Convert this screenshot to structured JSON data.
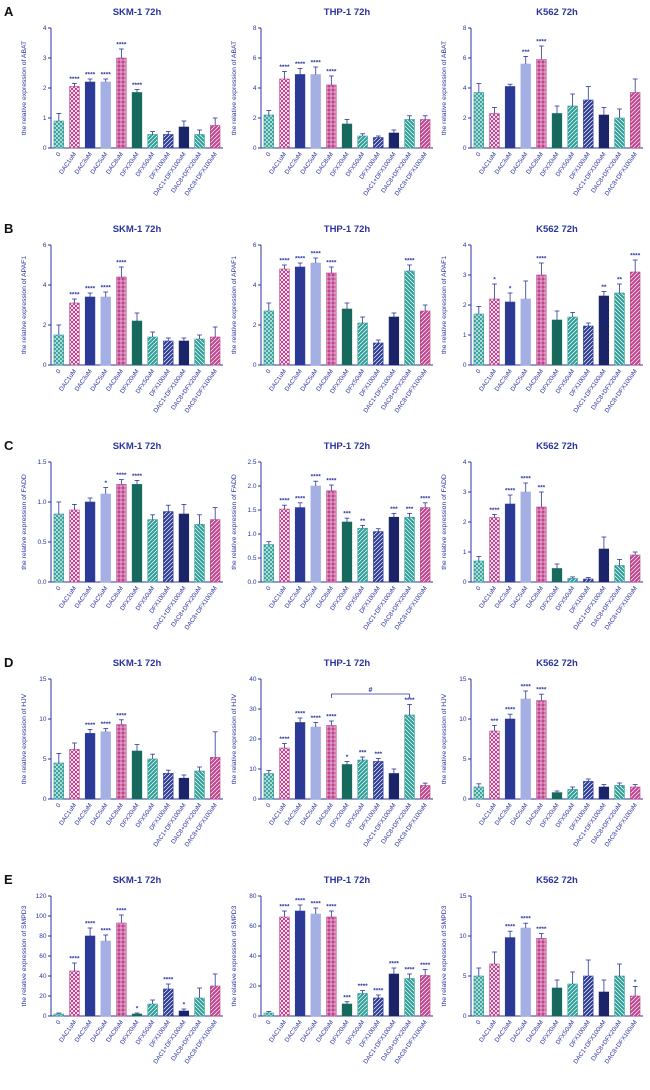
{
  "figure": {
    "text_color": "#2a34a0",
    "rows": [
      {
        "letter": "A",
        "gene": "ABAT"
      },
      {
        "letter": "B",
        "gene": "APAF1"
      },
      {
        "letter": "C",
        "gene": "FADD"
      },
      {
        "letter": "D",
        "gene": "HJV"
      },
      {
        "letter": "E",
        "gene": "SMPD3"
      }
    ],
    "categories": [
      "0",
      "DAC1uM",
      "DAC3uM",
      "DAC5uM",
      "DAC8uM",
      "DFX20uM",
      "DFX50uM",
      "DFX100uM",
      "DAC1+DFX100uM",
      "DAC8+DFX20uM",
      "DAC8+DFX100uM"
    ],
    "bar_styles": [
      {
        "label": "0",
        "color": "#2f9e98",
        "pattern": "cross-diag"
      },
      {
        "label": "DAC1uM",
        "color": "#c0448e",
        "pattern": "checker"
      },
      {
        "label": "DAC3uM",
        "color": "#2b3a96",
        "pattern": "solid"
      },
      {
        "label": "DAC5uM",
        "color": "#a4b0e4",
        "pattern": "solid"
      },
      {
        "label": "DAC8uM",
        "color": "#c0448e",
        "pattern": "crosshatch"
      },
      {
        "label": "DFX20uM",
        "color": "#16695c",
        "pattern": "solid"
      },
      {
        "label": "DFX50uM",
        "color": "#2f9e98",
        "pattern": "diag"
      },
      {
        "label": "DFX100uM",
        "color": "#2b3a96",
        "pattern": "diag"
      },
      {
        "label": "DAC1+DFX100uM",
        "color": "#1b2468",
        "pattern": "solid"
      },
      {
        "label": "DAC8+DFX20uM",
        "color": "#2f9e98",
        "pattern": "diag2"
      },
      {
        "label": "DAC8+DFX100uM",
        "color": "#c0448e",
        "pattern": "diag"
      }
    ]
  },
  "chart_data": [
    {
      "type": "bar",
      "row": "A",
      "title": "SKM-1 72h",
      "ylabel": "the relative expression of ABAT",
      "ylim": [
        0,
        4
      ],
      "yticks": [
        "0",
        "1",
        "2",
        "3",
        "4"
      ],
      "values": [
        0.9,
        2.05,
        2.2,
        2.2,
        3.0,
        1.85,
        0.45,
        0.45,
        0.7,
        0.45,
        0.75
      ],
      "errors": [
        0.25,
        0.1,
        0.1,
        0.1,
        0.3,
        0.1,
        0.1,
        0.1,
        0.2,
        0.15,
        0.25
      ],
      "sig": [
        "",
        "****",
        "****",
        "****",
        "****",
        "****",
        "",
        "",
        "",
        "",
        ""
      ]
    },
    {
      "type": "bar",
      "row": "A",
      "title": "THP-1 72h",
      "ylabel": "the relative expression of ABAT",
      "ylim": [
        0,
        8
      ],
      "yticks": [
        "0",
        "2",
        "4",
        "6",
        "8"
      ],
      "values": [
        2.2,
        4.6,
        4.9,
        4.9,
        4.2,
        1.6,
        0.8,
        0.7,
        1.0,
        1.9,
        1.9
      ],
      "errors": [
        0.3,
        0.5,
        0.4,
        0.5,
        0.6,
        0.3,
        0.15,
        0.1,
        0.2,
        0.25,
        0.25
      ],
      "sig": [
        "",
        "****",
        "****",
        "****",
        "****",
        "",
        "",
        "",
        "",
        "",
        ""
      ]
    },
    {
      "type": "bar",
      "row": "A",
      "title": "K562 72h",
      "ylabel": "the relative expression of ABAT",
      "ylim": [
        0,
        8
      ],
      "yticks": [
        "0",
        "2",
        "4",
        "6",
        "8"
      ],
      "values": [
        3.7,
        2.3,
        4.1,
        5.6,
        5.9,
        2.3,
        2.8,
        3.2,
        2.2,
        2.0,
        3.7
      ],
      "errors": [
        0.6,
        0.4,
        0.15,
        0.5,
        0.9,
        0.5,
        0.8,
        0.9,
        0.5,
        0.6,
        0.9
      ],
      "sig": [
        "",
        "",
        "",
        "***",
        "****",
        "",
        "",
        "",
        "",
        "",
        ""
      ]
    },
    {
      "type": "bar",
      "row": "B",
      "title": "SKM-1 72h",
      "ylabel": "the relative expression of APAF1",
      "ylim": [
        0,
        6
      ],
      "yticks": [
        "0",
        "2",
        "4",
        "6"
      ],
      "values": [
        1.5,
        3.1,
        3.4,
        3.4,
        4.4,
        2.2,
        1.4,
        1.2,
        1.2,
        1.3,
        1.4
      ],
      "errors": [
        0.5,
        0.2,
        0.2,
        0.25,
        0.5,
        0.4,
        0.25,
        0.15,
        0.15,
        0.2,
        0.5
      ],
      "sig": [
        "",
        "****",
        "****",
        "****",
        "****",
        "",
        "",
        "",
        "",
        "",
        ""
      ]
    },
    {
      "type": "bar",
      "row": "B",
      "title": "THP-1 72h",
      "ylabel": "the relative expression of APAF1",
      "ylim": [
        0,
        6
      ],
      "yticks": [
        "0",
        "2",
        "4",
        "6"
      ],
      "values": [
        2.7,
        4.8,
        4.9,
        5.1,
        4.6,
        2.8,
        2.1,
        1.1,
        2.4,
        4.7,
        2.7
      ],
      "errors": [
        0.4,
        0.2,
        0.2,
        0.25,
        0.3,
        0.3,
        0.3,
        0.15,
        0.2,
        0.3,
        0.3
      ],
      "sig": [
        "",
        "****",
        "****",
        "****",
        "****",
        "",
        "",
        "",
        "",
        "****",
        ""
      ]
    },
    {
      "type": "bar",
      "row": "B",
      "title": "K562 72h",
      "ylabel": "the relative expression of APAF1",
      "ylim": [
        0,
        4
      ],
      "yticks": [
        "0",
        "1",
        "2",
        "3",
        "4"
      ],
      "values": [
        1.7,
        2.2,
        2.1,
        2.2,
        3.0,
        1.5,
        1.6,
        1.3,
        2.3,
        2.4,
        3.1
      ],
      "errors": [
        0.25,
        0.5,
        0.3,
        0.6,
        0.4,
        0.3,
        0.15,
        0.1,
        0.15,
        0.3,
        0.4
      ],
      "sig": [
        "",
        "*",
        "*",
        "",
        "****",
        "",
        "",
        "",
        "**",
        "**",
        "****"
      ]
    },
    {
      "type": "bar",
      "row": "C",
      "title": "SKM-1 72h",
      "ylabel": "the relative expression of FADD",
      "ylim": [
        0,
        1.5
      ],
      "yticks": [
        "0.0",
        "0.5",
        "1.0",
        "1.5"
      ],
      "values": [
        0.85,
        0.9,
        1.0,
        1.1,
        1.22,
        1.22,
        0.78,
        0.88,
        0.85,
        0.72,
        0.78
      ],
      "errors": [
        0.15,
        0.07,
        0.05,
        0.08,
        0.06,
        0.05,
        0.06,
        0.08,
        0.12,
        0.12,
        0.15
      ],
      "sig": [
        "",
        "",
        "",
        "*",
        "****",
        "****",
        "",
        "",
        "",
        "",
        ""
      ]
    },
    {
      "type": "bar",
      "row": "C",
      "title": "THP-1 72h",
      "ylabel": "the relative expression of FADD",
      "ylim": [
        0,
        2.5
      ],
      "yticks": [
        "0.0",
        "0.5",
        "1.0",
        "1.5",
        "2.0",
        "2.5"
      ],
      "values": [
        0.78,
        1.52,
        1.55,
        2.0,
        1.9,
        1.25,
        1.12,
        1.05,
        1.35,
        1.35,
        1.55
      ],
      "errors": [
        0.06,
        0.08,
        0.1,
        0.1,
        0.12,
        0.08,
        0.06,
        0.06,
        0.08,
        0.08,
        0.1
      ],
      "sig": [
        "",
        "****",
        "****",
        "****",
        "****",
        "***",
        "**",
        "",
        "***",
        "***",
        "****"
      ]
    },
    {
      "type": "bar",
      "row": "C",
      "title": "K562 72h",
      "ylabel": "the relative expression of FADD",
      "ylim": [
        0,
        4
      ],
      "yticks": [
        "0",
        "1",
        "2",
        "3",
        "4"
      ],
      "values": [
        0.7,
        2.15,
        2.6,
        3.0,
        2.5,
        0.45,
        0.12,
        0.1,
        1.1,
        0.55,
        0.9
      ],
      "errors": [
        0.15,
        0.1,
        0.3,
        0.3,
        0.5,
        0.15,
        0.05,
        0.05,
        0.4,
        0.2,
        0.1
      ],
      "sig": [
        "",
        "****",
        "****",
        "****",
        "***",
        "",
        "",
        "",
        "",
        "",
        ""
      ]
    },
    {
      "type": "bar",
      "row": "D",
      "title": "SKM-1 72h",
      "ylabel": "the relative expression of HJV",
      "ylim": [
        0,
        15
      ],
      "yticks": [
        "0",
        "5",
        "10",
        "15"
      ],
      "values": [
        4.5,
        6.2,
        8.2,
        8.4,
        9.3,
        6.0,
        5.0,
        3.2,
        2.6,
        3.5,
        5.2
      ],
      "errors": [
        1.2,
        0.8,
        0.5,
        0.4,
        0.6,
        0.8,
        0.6,
        0.4,
        0.4,
        0.5,
        3.2
      ],
      "sig": [
        "",
        "",
        "****",
        "****",
        "****",
        "",
        "",
        "",
        "",
        "",
        ""
      ]
    },
    {
      "type": "bar",
      "row": "D",
      "title": "THP-1 72h",
      "ylabel": "the relative expression of HJV",
      "ylim": [
        0,
        40
      ],
      "yticks": [
        "0",
        "10",
        "20",
        "30",
        "40"
      ],
      "values": [
        8.5,
        17,
        25.5,
        24,
        24.5,
        11.5,
        13,
        12.5,
        8.5,
        28,
        4.5
      ],
      "errors": [
        1.0,
        1.5,
        1.5,
        1.5,
        1.5,
        1.0,
        1.0,
        1.0,
        1.5,
        3.5,
        0.8
      ],
      "sig": [
        "",
        "****",
        "****",
        "****",
        "****",
        "*",
        "***",
        "***",
        "",
        "****",
        ""
      ],
      "comparison": {
        "from": 4,
        "to": 9,
        "label": "#",
        "y": 35
      }
    },
    {
      "type": "bar",
      "row": "D",
      "title": "K562 72h",
      "ylabel": "the relative expression of HJV",
      "ylim": [
        0,
        15
      ],
      "yticks": [
        "0",
        "5",
        "10",
        "15"
      ],
      "values": [
        1.5,
        8.5,
        10.0,
        12.5,
        12.3,
        0.8,
        1.2,
        2.2,
        1.5,
        1.7,
        1.5
      ],
      "errors": [
        0.4,
        0.7,
        0.6,
        1.0,
        0.8,
        0.2,
        0.3,
        0.3,
        0.3,
        0.3,
        0.3
      ],
      "sig": [
        "",
        "***",
        "****",
        "****",
        "****",
        "",
        "",
        "",
        "",
        "",
        ""
      ]
    },
    {
      "type": "bar",
      "row": "E",
      "title": "SKM-1 72h",
      "ylabel": "the relative expression of SMPD3",
      "ylim": [
        0,
        120
      ],
      "yticks": [
        "0",
        "20",
        "40",
        "60",
        "80",
        "100",
        "120"
      ],
      "values": [
        2,
        45,
        80,
        75,
        93,
        2,
        12,
        27,
        5,
        18,
        30
      ],
      "errors": [
        1,
        8,
        8,
        6,
        8,
        1,
        4,
        5,
        2,
        10,
        12
      ],
      "sig": [
        "",
        "****",
        "****",
        "****",
        "****",
        "*",
        "",
        "****",
        "*",
        "",
        ""
      ]
    },
    {
      "type": "bar",
      "row": "E",
      "title": "THP-1 72h",
      "ylabel": "the relative expression of SMPD3",
      "ylim": [
        0,
        80
      ],
      "yticks": [
        "0",
        "20",
        "40",
        "60",
        "80"
      ],
      "values": [
        2,
        66,
        70,
        68,
        66,
        8,
        15,
        12,
        28,
        25,
        27
      ],
      "errors": [
        1,
        4,
        4,
        4,
        4,
        1.5,
        2,
        2,
        4,
        3,
        4
      ],
      "sig": [
        "",
        "****",
        "****",
        "****",
        "****",
        "***",
        "****",
        "****",
        "****",
        "****",
        "****"
      ]
    },
    {
      "type": "bar",
      "row": "E",
      "title": "K562 72h",
      "ylabel": "the relative expression of SMPD3",
      "ylim": [
        0,
        15
      ],
      "yticks": [
        "0",
        "5",
        "10",
        "15"
      ],
      "values": [
        5.0,
        6.5,
        9.8,
        11.0,
        9.7,
        3.5,
        4.0,
        5.0,
        3.0,
        5.0,
        2.5
      ],
      "errors": [
        1.0,
        1.5,
        0.8,
        0.6,
        0.6,
        1.0,
        1.5,
        2.0,
        1.5,
        1.5,
        1.2
      ],
      "sig": [
        "",
        "",
        "****",
        "****",
        "****",
        "",
        "",
        "",
        "",
        "",
        "*"
      ]
    }
  ]
}
